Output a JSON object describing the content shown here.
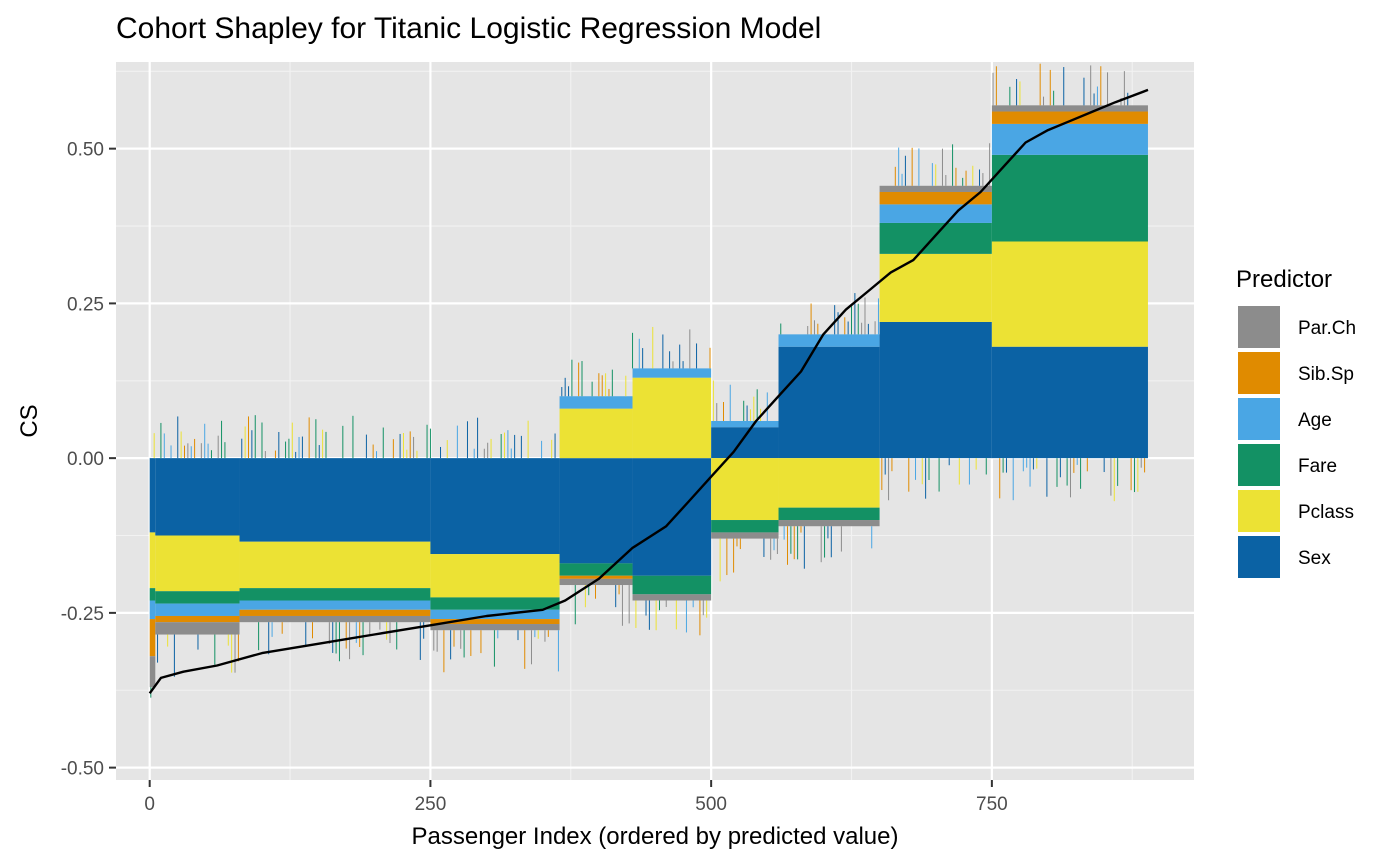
{
  "chart_data": {
    "type": "bar",
    "subtype": "stacked-bar-with-line",
    "title": "Cohort Shapley for Titanic Logistic Regression Model",
    "xlabel": "Passenger Index (ordered by predicted value)",
    "ylabel": "CS",
    "xlim": [
      -30,
      930
    ],
    "ylim": [
      -0.52,
      0.64
    ],
    "x_ticks": [
      0,
      250,
      500,
      750
    ],
    "x_tick_labels": [
      "0",
      "250",
      "500",
      "750"
    ],
    "y_ticks": [
      -0.5,
      -0.25,
      0,
      0.25,
      0.5
    ],
    "y_tick_labels": [
      "-0.50",
      "-0.25",
      "0.00",
      "0.25",
      "0.50"
    ],
    "n_passengers": 889,
    "grid": true,
    "legend": {
      "title": "Predictor",
      "placement": "right",
      "items": [
        {
          "name": "Par.Ch",
          "color": "#8c8c8c"
        },
        {
          "name": "Sib.Sp",
          "color": "#e08b00"
        },
        {
          "name": "Age",
          "color": "#4aa6e4"
        },
        {
          "name": "Fare",
          "color": "#139164"
        },
        {
          "name": "Pclass",
          "color": "#ece234"
        },
        {
          "name": "Sex",
          "color": "#0b62a4"
        }
      ]
    },
    "stack_order": [
      "Sex",
      "Pclass",
      "Fare",
      "Age",
      "Sib.Sp",
      "Par.Ch"
    ],
    "segments": [
      {
        "x_range": [
          0,
          5
        ],
        "values": {
          "Sex": -0.12,
          "Pclass": -0.09,
          "Fare": -0.02,
          "Age": -0.03,
          "Sib.Sp": -0.06,
          "Par.Ch": -0.05
        }
      },
      {
        "x_range": [
          5,
          80
        ],
        "values": {
          "Sex": -0.125,
          "Pclass": -0.09,
          "Fare": -0.02,
          "Age": -0.02,
          "Sib.Sp": -0.01,
          "Par.Ch": -0.02
        }
      },
      {
        "x_range": [
          80,
          250
        ],
        "values": {
          "Sex": -0.135,
          "Pclass": -0.075,
          "Fare": -0.02,
          "Age": -0.015,
          "Sib.Sp": -0.01,
          "Par.Ch": -0.01
        }
      },
      {
        "x_range": [
          250,
          365
        ],
        "values": {
          "Sex": -0.155,
          "Pclass": -0.07,
          "Fare": -0.02,
          "Age": -0.015,
          "Sib.Sp": -0.008,
          "Par.Ch": -0.01
        }
      },
      {
        "x_range": [
          365,
          430
        ],
        "values": {
          "Sex": -0.17,
          "Pclass": 0.08,
          "Fare": -0.02,
          "Age": 0.02,
          "Sib.Sp": -0.005,
          "Par.Ch": -0.01
        }
      },
      {
        "x_range": [
          430,
          500
        ],
        "values": {
          "Sex": -0.19,
          "Pclass": 0.13,
          "Fare": -0.03,
          "Age": 0.015,
          "Sib.Sp": 0.0,
          "Par.Ch": -0.01
        }
      },
      {
        "x_range": [
          500,
          560
        ],
        "values": {
          "Sex": 0.05,
          "Pclass": -0.1,
          "Fare": -0.02,
          "Age": 0.01,
          "Sib.Sp": 0.0,
          "Par.Ch": -0.01
        }
      },
      {
        "x_range": [
          560,
          650
        ],
        "values": {
          "Sex": 0.18,
          "Pclass": -0.08,
          "Fare": -0.02,
          "Age": 0.02,
          "Sib.Sp": 0.0,
          "Par.Ch": -0.01
        }
      },
      {
        "x_range": [
          650,
          750
        ],
        "values": {
          "Sex": 0.22,
          "Pclass": 0.11,
          "Fare": 0.05,
          "Age": 0.03,
          "Sib.Sp": 0.02,
          "Par.Ch": 0.01
        }
      },
      {
        "x_range": [
          750,
          889
        ],
        "values": {
          "Sex": 0.18,
          "Pclass": 0.17,
          "Fare": 0.14,
          "Age": 0.05,
          "Sib.Sp": 0.02,
          "Par.Ch": 0.01
        }
      }
    ],
    "prediction_line": {
      "x": [
        0,
        10,
        30,
        60,
        100,
        150,
        200,
        250,
        300,
        350,
        370,
        400,
        430,
        460,
        480,
        500,
        520,
        540,
        560,
        580,
        600,
        620,
        640,
        660,
        680,
        700,
        720,
        740,
        760,
        780,
        800,
        820,
        840,
        860,
        889
      ],
      "y": [
        -0.38,
        -0.355,
        -0.345,
        -0.335,
        -0.315,
        -0.3,
        -0.285,
        -0.27,
        -0.255,
        -0.245,
        -0.23,
        -0.195,
        -0.145,
        -0.11,
        -0.07,
        -0.03,
        0.01,
        0.06,
        0.1,
        0.14,
        0.2,
        0.24,
        0.27,
        0.3,
        0.32,
        0.36,
        0.4,
        0.43,
        0.47,
        0.51,
        0.53,
        0.545,
        0.56,
        0.575,
        0.595
      ]
    }
  }
}
